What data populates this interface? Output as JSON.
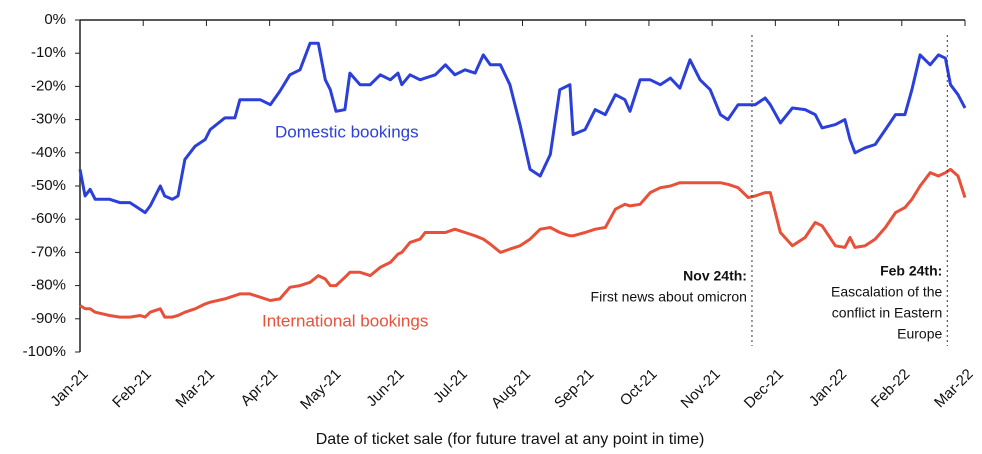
{
  "chart_data": {
    "type": "line",
    "x_label": "Date of ticket sale (for future travel at any point in time)",
    "xlim": [
      0,
      14
    ],
    "xticks": [
      {
        "value": 0,
        "label": "Jan-21"
      },
      {
        "value": 1,
        "label": "Feb-21"
      },
      {
        "value": 2,
        "label": "Mar-21"
      },
      {
        "value": 3,
        "label": "Apr-21"
      },
      {
        "value": 4,
        "label": "May-21"
      },
      {
        "value": 5,
        "label": "Jun-21"
      },
      {
        "value": 6,
        "label": "Jul-21"
      },
      {
        "value": 7,
        "label": "Aug-21"
      },
      {
        "value": 8,
        "label": "Sep-21"
      },
      {
        "value": 9,
        "label": "Oct-21"
      },
      {
        "value": 10,
        "label": "Nov-21"
      },
      {
        "value": 11,
        "label": "Dec-21"
      },
      {
        "value": 12,
        "label": "Jan-22"
      },
      {
        "value": 13,
        "label": "Feb-22"
      },
      {
        "value": 14,
        "label": "Mar-22"
      }
    ],
    "ylim": [
      -100,
      0
    ],
    "yticks": [
      {
        "value": 0,
        "label": "0%"
      },
      {
        "value": -10,
        "label": "-10%"
      },
      {
        "value": -20,
        "label": "-20%"
      },
      {
        "value": -30,
        "label": "-30%"
      },
      {
        "value": -40,
        "label": "-40%"
      },
      {
        "value": -50,
        "label": "-50%"
      },
      {
        "value": -60,
        "label": "-60%"
      },
      {
        "value": -70,
        "label": "-70%"
      },
      {
        "value": -80,
        "label": "-80%"
      },
      {
        "value": -90,
        "label": "-90%"
      },
      {
        "value": -100,
        "label": "-100%"
      }
    ],
    "x": [
      0,
      0.08,
      0.16,
      0.24,
      0.47,
      0.63,
      0.79,
      0.95,
      1.03,
      1.11,
      1.27,
      1.34,
      1.46,
      1.55,
      1.66,
      1.82,
      1.98,
      2.06,
      2.29,
      2.45,
      2.53,
      2.69,
      2.85,
      3.01,
      3.16,
      3.32,
      3.48,
      3.64,
      3.77,
      3.88,
      3.96,
      4.05,
      4.19,
      4.27,
      4.43,
      4.59,
      4.75,
      4.91,
      5.03,
      5.09,
      5.22,
      5.38,
      5.46,
      5.62,
      5.78,
      5.93,
      6.09,
      6.25,
      6.38,
      6.49,
      6.65,
      6.8,
      6.96,
      7.12,
      7.28,
      7.44,
      7.59,
      7.75,
      7.8,
      7.99,
      8.15,
      8.31,
      8.47,
      8.62,
      8.7,
      8.86,
      9.02,
      9.18,
      9.34,
      9.49,
      9.65,
      9.81,
      9.97,
      10.13,
      10.25,
      10.41,
      10.57,
      10.68,
      10.84,
      10.92,
      11.08,
      11.27,
      11.47,
      11.63,
      11.74,
      11.95,
      12.1,
      12.18,
      12.26,
      12.42,
      12.58,
      12.74,
      12.9,
      13.05,
      13.16,
      13.29,
      13.45,
      13.58,
      13.69,
      13.77,
      13.89,
      14
    ],
    "series": [
      {
        "name": "Domestic bookings",
        "color": "#2b3fd9",
        "values": [
          -45,
          -53,
          -51,
          -54,
          -54,
          -55,
          -55,
          -57,
          -58,
          -56,
          -50,
          -53,
          -54,
          -53,
          -42,
          -38,
          -36,
          -33,
          -29.5,
          -29.5,
          -24,
          -24,
          -24,
          -25.5,
          -21.5,
          -16.5,
          -15,
          -7,
          -7,
          -18,
          -21,
          -27.5,
          -27,
          -16,
          -19.5,
          -19.5,
          -16.5,
          -18,
          -16,
          -19.5,
          -16.5,
          -18,
          -17.5,
          -16.5,
          -13.5,
          -16.5,
          -15,
          -16,
          -10.5,
          -13.5,
          -13.5,
          -19.5,
          -31.5,
          -45,
          -47,
          -40.5,
          -21,
          -19.5,
          -34.5,
          -33,
          -27,
          -28.5,
          -22.5,
          -24,
          -27.5,
          -18,
          -18,
          -19.5,
          -17.5,
          -20.5,
          -12,
          -18,
          -21,
          -28.5,
          -30,
          -25.5,
          -25.5,
          -25.5,
          -23.5,
          -25.5,
          -31,
          -26.5,
          -27,
          -28.5,
          -32.5,
          -31.5,
          -30,
          -36,
          -40,
          -38.5,
          -37.5,
          -33,
          -28.5,
          -28.5,
          -21,
          -10.5,
          -13.5,
          -10.5,
          -11.5,
          -19.5,
          -22.5,
          -26.5
        ]
      },
      {
        "name": "International bookings",
        "color": "#e8503a",
        "values": [
          -86,
          -87,
          -87,
          -88,
          -89,
          -89.5,
          -89.5,
          -89,
          -89.5,
          -88,
          -87,
          -89.5,
          -89.5,
          -89,
          -88,
          -87,
          -85.5,
          -85,
          -84,
          -83,
          -82.5,
          -82.5,
          -83.5,
          -84.5,
          -84,
          -80.5,
          -80,
          -79,
          -77,
          -78,
          -80,
          -80,
          -77.5,
          -76,
          -76,
          -77,
          -74.5,
          -73,
          -70.5,
          -70,
          -67,
          -66,
          -64,
          -64,
          -64,
          -63,
          -64,
          -65,
          -66,
          -67.5,
          -70,
          -69,
          -68,
          -66,
          -63,
          -62.5,
          -64,
          -65,
          -65,
          -64,
          -63,
          -62.5,
          -57,
          -55.5,
          -56,
          -55.5,
          -52,
          -50.5,
          -50,
          -49,
          -49,
          -49,
          -49,
          -49,
          -49.5,
          -50.5,
          -53.5,
          -53,
          -52,
          -52,
          -64,
          -68,
          -65.5,
          -61,
          -62,
          -68,
          -68.5,
          -65.5,
          -68.5,
          -68,
          -66,
          -62.5,
          -58,
          -56.5,
          -54,
          -50,
          -46,
          -47,
          -46,
          -45,
          -47,
          -53.5
        ]
      }
    ],
    "annotations": [
      {
        "x": 10.63,
        "title": "Nov 24th:",
        "lines": [
          "First news about omicron"
        ]
      },
      {
        "x": 13.72,
        "title": "Feb 24th:",
        "lines": [
          "Eascalation of the",
          "conflict in Eastern",
          "Europe"
        ]
      }
    ]
  }
}
